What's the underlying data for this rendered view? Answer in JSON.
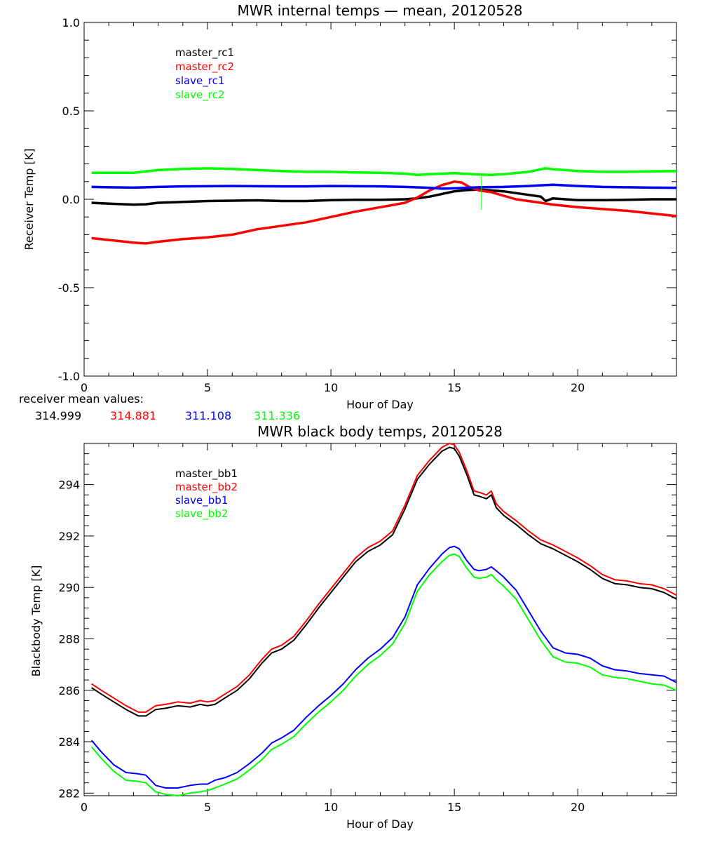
{
  "chart_data": [
    {
      "type": "line",
      "title": "MWR internal temps — mean, 20120528",
      "xlabel": "Hour of Day",
      "ylabel": "Receiver Temp [K]",
      "xlim": [
        0,
        24
      ],
      "ylim": [
        -1.0,
        1.0
      ],
      "xticks": [
        "0",
        "5",
        "10",
        "15",
        "20"
      ],
      "xtick_values": [
        0,
        5,
        10,
        15,
        20
      ],
      "yticks": [
        "-1.0",
        "-0.5",
        "0.0",
        "0.5",
        "1.0"
      ],
      "ytick_values": [
        -1.0,
        -0.5,
        0.0,
        0.5,
        1.0
      ],
      "grid": false,
      "legend_position": "top-left",
      "series": [
        {
          "name": "master_rc1",
          "color": "#000000",
          "x": [
            0.3,
            1,
            2,
            2.5,
            3,
            4,
            5,
            6,
            7,
            8,
            9,
            10,
            11,
            12,
            13,
            13.5,
            14,
            14.5,
            15,
            15.5,
            16,
            16.5,
            17,
            17.5,
            18,
            18.5,
            18.7,
            19,
            20,
            21,
            22,
            23,
            24
          ],
          "y": [
            -0.02,
            -0.025,
            -0.03,
            -0.028,
            -0.02,
            -0.015,
            -0.01,
            -0.008,
            -0.006,
            -0.01,
            -0.01,
            -0.005,
            -0.003,
            -0.003,
            0.0,
            0.005,
            0.015,
            0.03,
            0.045,
            0.052,
            0.055,
            0.05,
            0.045,
            0.035,
            0.025,
            0.015,
            -0.01,
            0.005,
            -0.005,
            -0.005,
            -0.003,
            0.0,
            0.0
          ]
        },
        {
          "name": "master_rc2",
          "color": "#ff0000",
          "x": [
            0.3,
            1,
            2,
            2.5,
            3,
            4,
            5,
            6,
            7,
            8,
            9,
            10,
            11,
            12,
            13,
            13.5,
            14,
            14.5,
            15,
            15.3,
            15.6,
            16,
            16.5,
            17,
            17.5,
            18,
            18.5,
            19,
            20,
            21,
            22,
            23,
            24
          ],
          "y": [
            -0.22,
            -0.23,
            -0.245,
            -0.25,
            -0.24,
            -0.225,
            -0.215,
            -0.2,
            -0.17,
            -0.15,
            -0.13,
            -0.1,
            -0.07,
            -0.045,
            -0.02,
            0.01,
            0.05,
            0.08,
            0.1,
            0.095,
            0.07,
            0.05,
            0.04,
            0.02,
            0.0,
            -0.01,
            -0.02,
            -0.03,
            -0.045,
            -0.055,
            -0.065,
            -0.08,
            -0.095
          ]
        },
        {
          "name": "slave_rc1",
          "color": "#0000ff",
          "x": [
            0.3,
            1,
            2,
            3,
            4,
            5,
            6,
            7,
            8,
            9,
            10,
            11,
            12,
            13,
            14,
            14.5,
            15,
            15.5,
            16,
            17,
            18,
            19,
            20,
            21,
            22,
            23,
            24
          ],
          "y": [
            0.07,
            0.068,
            0.066,
            0.07,
            0.073,
            0.074,
            0.075,
            0.074,
            0.073,
            0.073,
            0.075,
            0.074,
            0.073,
            0.07,
            0.065,
            0.06,
            0.062,
            0.065,
            0.068,
            0.07,
            0.075,
            0.082,
            0.075,
            0.07,
            0.068,
            0.066,
            0.065
          ]
        },
        {
          "name": "slave_rc2",
          "color": "#00ff00",
          "x": [
            0.3,
            1,
            2,
            3,
            4,
            5,
            6,
            7,
            8,
            9,
            10,
            11,
            12,
            13,
            13.5,
            14,
            15,
            16,
            16.5,
            17,
            18,
            18.7,
            19,
            19.5,
            20,
            21,
            22,
            23,
            24
          ],
          "y": [
            0.15,
            0.15,
            0.15,
            0.165,
            0.172,
            0.175,
            0.172,
            0.165,
            0.16,
            0.155,
            0.155,
            0.152,
            0.15,
            0.145,
            0.138,
            0.142,
            0.148,
            0.14,
            0.138,
            0.142,
            0.155,
            0.175,
            0.17,
            0.165,
            0.16,
            0.155,
            0.155,
            0.158,
            0.16
          ]
        }
      ],
      "annotations": [
        {
          "type": "spike",
          "series": "slave_rc2",
          "x": 16.1,
          "y_min": -0.06,
          "y_max": 0.13
        }
      ]
    },
    {
      "type": "line",
      "title": "MWR black body temps, 20120528",
      "xlabel": "Hour of Day",
      "ylabel": "Blackbody Temp [K]",
      "xlim": [
        0,
        24
      ],
      "ylim": [
        281.9,
        295.6
      ],
      "xticks": [
        "0",
        "5",
        "10",
        "15",
        "20"
      ],
      "xtick_values": [
        0,
        5,
        10,
        15,
        20
      ],
      "yticks": [
        "282",
        "284",
        "286",
        "288",
        "290",
        "292",
        "294"
      ],
      "ytick_values": [
        282,
        284,
        286,
        288,
        290,
        292,
        294
      ],
      "grid": false,
      "legend_position": "top-left",
      "series": [
        {
          "name": "master_bb1",
          "color": "#000000",
          "x": [
            0.3,
            0.7,
            1.2,
            1.7,
            2.2,
            2.5,
            2.9,
            3.3,
            3.8,
            4.3,
            4.7,
            5.0,
            5.3,
            5.7,
            6.2,
            6.7,
            7.2,
            7.6,
            8.0,
            8.5,
            9.0,
            9.5,
            10.0,
            10.5,
            11.0,
            11.5,
            12.0,
            12.5,
            13.0,
            13.5,
            14.0,
            14.5,
            14.8,
            15.0,
            15.2,
            15.5,
            15.8,
            16.0,
            16.3,
            16.5,
            16.7,
            17.0,
            17.5,
            18.0,
            18.5,
            19.0,
            19.5,
            20.0,
            20.5,
            21.0,
            21.5,
            22.0,
            22.5,
            23.0,
            23.5,
            24.0
          ],
          "y": [
            286.1,
            285.85,
            285.55,
            285.25,
            285.0,
            285.0,
            285.25,
            285.3,
            285.4,
            285.35,
            285.45,
            285.4,
            285.45,
            285.7,
            286.0,
            286.45,
            287.05,
            287.45,
            287.6,
            287.95,
            288.55,
            289.2,
            289.8,
            290.4,
            291.0,
            291.4,
            291.65,
            292.05,
            293.05,
            294.2,
            294.8,
            295.3,
            295.45,
            295.4,
            295.1,
            294.4,
            293.6,
            293.55,
            293.45,
            293.6,
            293.1,
            292.8,
            292.45,
            292.05,
            291.7,
            291.5,
            291.25,
            291.0,
            290.7,
            290.35,
            290.15,
            290.1,
            290.0,
            289.95,
            289.8,
            289.55
          ]
        },
        {
          "name": "master_bb2",
          "color": "#ff0000",
          "x": [
            0.3,
            0.7,
            1.2,
            1.7,
            2.2,
            2.5,
            2.9,
            3.3,
            3.8,
            4.3,
            4.7,
            5.0,
            5.3,
            5.7,
            6.2,
            6.7,
            7.2,
            7.6,
            8.0,
            8.5,
            9.0,
            9.5,
            10.0,
            10.5,
            11.0,
            11.5,
            12.0,
            12.5,
            13.0,
            13.5,
            14.0,
            14.5,
            14.8,
            15.0,
            15.2,
            15.5,
            15.8,
            16.0,
            16.3,
            16.5,
            16.7,
            17.0,
            17.5,
            18.0,
            18.5,
            19.0,
            19.5,
            20.0,
            20.5,
            21.0,
            21.5,
            22.0,
            22.5,
            23.0,
            23.5,
            24.0
          ],
          "y": [
            286.25,
            286.0,
            285.7,
            285.4,
            285.15,
            285.15,
            285.4,
            285.45,
            285.55,
            285.5,
            285.6,
            285.55,
            285.6,
            285.85,
            286.15,
            286.6,
            287.2,
            287.6,
            287.75,
            288.1,
            288.7,
            289.35,
            289.95,
            290.55,
            291.15,
            291.55,
            291.8,
            292.2,
            293.2,
            294.35,
            294.95,
            295.45,
            295.6,
            295.55,
            295.25,
            294.55,
            293.75,
            293.7,
            293.6,
            293.75,
            293.25,
            292.95,
            292.6,
            292.2,
            291.85,
            291.65,
            291.4,
            291.15,
            290.85,
            290.5,
            290.3,
            290.25,
            290.15,
            290.1,
            289.95,
            289.7
          ]
        },
        {
          "name": "slave_bb1",
          "color": "#0000ff",
          "x": [
            0.3,
            0.7,
            1.2,
            1.7,
            2.2,
            2.5,
            2.9,
            3.3,
            3.8,
            4.3,
            4.7,
            5.0,
            5.3,
            5.7,
            6.2,
            6.7,
            7.2,
            7.6,
            8.0,
            8.5,
            9.0,
            9.5,
            10.0,
            10.5,
            11.0,
            11.5,
            12.0,
            12.5,
            13.0,
            13.5,
            14.0,
            14.5,
            14.8,
            15.0,
            15.2,
            15.5,
            15.8,
            16.0,
            16.3,
            16.5,
            16.7,
            17.0,
            17.5,
            18.0,
            18.5,
            19.0,
            19.5,
            20.0,
            20.5,
            21.0,
            21.5,
            22.0,
            22.5,
            23.0,
            23.5,
            24.0
          ],
          "y": [
            284.05,
            283.6,
            283.1,
            282.8,
            282.75,
            282.7,
            282.3,
            282.2,
            282.2,
            282.3,
            282.35,
            282.35,
            282.5,
            282.6,
            282.8,
            283.15,
            283.55,
            283.95,
            284.15,
            284.45,
            284.95,
            285.4,
            285.8,
            286.25,
            286.8,
            287.25,
            287.6,
            288.05,
            288.85,
            290.1,
            290.75,
            291.3,
            291.55,
            291.6,
            291.5,
            291.05,
            290.7,
            290.65,
            290.7,
            290.8,
            290.65,
            290.4,
            289.9,
            289.1,
            288.3,
            287.65,
            287.45,
            287.4,
            287.25,
            286.95,
            286.8,
            286.75,
            286.65,
            286.6,
            286.55,
            286.3
          ]
        },
        {
          "name": "slave_bb2",
          "color": "#00ff00",
          "x": [
            0.3,
            0.7,
            1.2,
            1.7,
            2.2,
            2.5,
            2.9,
            3.3,
            3.8,
            4.3,
            4.7,
            5.0,
            5.3,
            5.7,
            6.2,
            6.7,
            7.2,
            7.6,
            8.0,
            8.5,
            9.0,
            9.5,
            10.0,
            10.5,
            11.0,
            11.5,
            12.0,
            12.5,
            13.0,
            13.5,
            14.0,
            14.5,
            14.8,
            15.0,
            15.2,
            15.5,
            15.8,
            16.0,
            16.3,
            16.5,
            16.7,
            17.0,
            17.5,
            18.0,
            18.5,
            19.0,
            19.5,
            20.0,
            20.5,
            21.0,
            21.5,
            22.0,
            22.5,
            23.0,
            23.5,
            24.0
          ],
          "y": [
            283.8,
            283.35,
            282.85,
            282.5,
            282.45,
            282.4,
            282.05,
            281.95,
            281.9,
            282.0,
            282.05,
            282.1,
            282.2,
            282.35,
            282.55,
            282.9,
            283.3,
            283.7,
            283.9,
            284.2,
            284.7,
            285.15,
            285.55,
            286.0,
            286.55,
            287.0,
            287.35,
            287.8,
            288.6,
            289.85,
            290.5,
            291.0,
            291.25,
            291.3,
            291.2,
            290.75,
            290.4,
            290.35,
            290.4,
            290.5,
            290.3,
            290.05,
            289.55,
            288.75,
            287.95,
            287.3,
            287.1,
            287.05,
            286.9,
            286.6,
            286.5,
            286.45,
            286.35,
            286.25,
            286.2,
            286.0
          ]
        }
      ]
    }
  ],
  "receiver_means": {
    "label": "receiver mean values:",
    "values": [
      {
        "text": "314.999",
        "color": "#000000"
      },
      {
        "text": "314.881",
        "color": "#ff0000"
      },
      {
        "text": "311.108",
        "color": "#0000ff"
      },
      {
        "text": "311.336",
        "color": "#00ff00"
      }
    ]
  }
}
